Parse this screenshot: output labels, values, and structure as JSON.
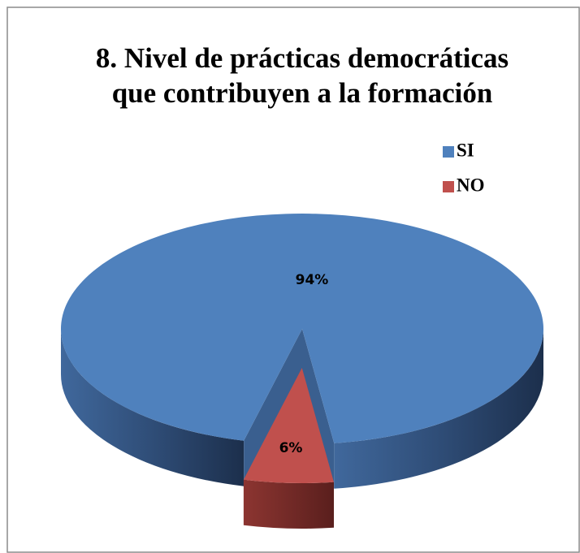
{
  "chart_data": {
    "type": "pie",
    "title": [
      "8. Nivel de prácticas democráticas",
      "que contribuyen a la formación"
    ],
    "categories": [
      "SI",
      "NO"
    ],
    "values": [
      94,
      6
    ],
    "value_labels": [
      "94%",
      "6%"
    ],
    "colors": [
      "#4f81bd",
      "#c0504d"
    ],
    "legend": "right"
  }
}
